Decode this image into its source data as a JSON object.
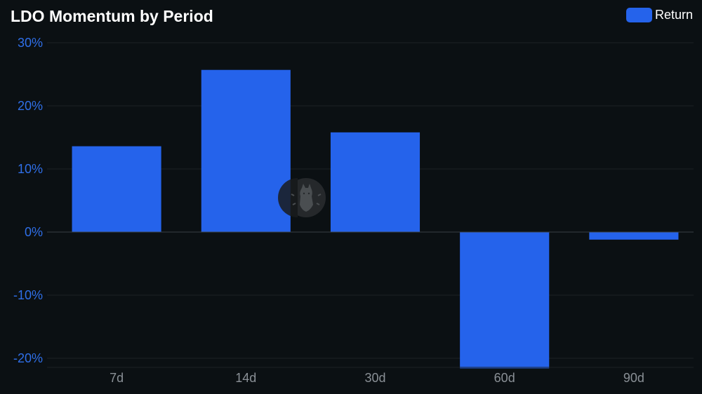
{
  "colors": {
    "background": "#0b1013",
    "bar": "#2563eb",
    "y_tick": "#2f6fe8",
    "x_tick": "#8a9096",
    "grid": "#1c2226",
    "zero_line": "#3a4046"
  },
  "chart_data": {
    "type": "bar",
    "title": "LDO Momentum by Period",
    "xlabel": "",
    "ylabel": "",
    "categories": [
      "7d",
      "14d",
      "30d",
      "60d",
      "90d"
    ],
    "series": [
      {
        "name": "Return",
        "values": [
          13.6,
          25.7,
          15.8,
          -21.6,
          -1.2
        ]
      }
    ],
    "ylim": [
      -21,
      30
    ],
    "yticks": [
      30,
      20,
      10,
      0,
      -10,
      -20
    ],
    "ytick_labels": [
      "30%",
      "20%",
      "10%",
      "0%",
      "-10%",
      "-20%"
    ],
    "grid": true,
    "legend": "top-right"
  },
  "watermark": {
    "icon": "llama-logo-icon"
  }
}
